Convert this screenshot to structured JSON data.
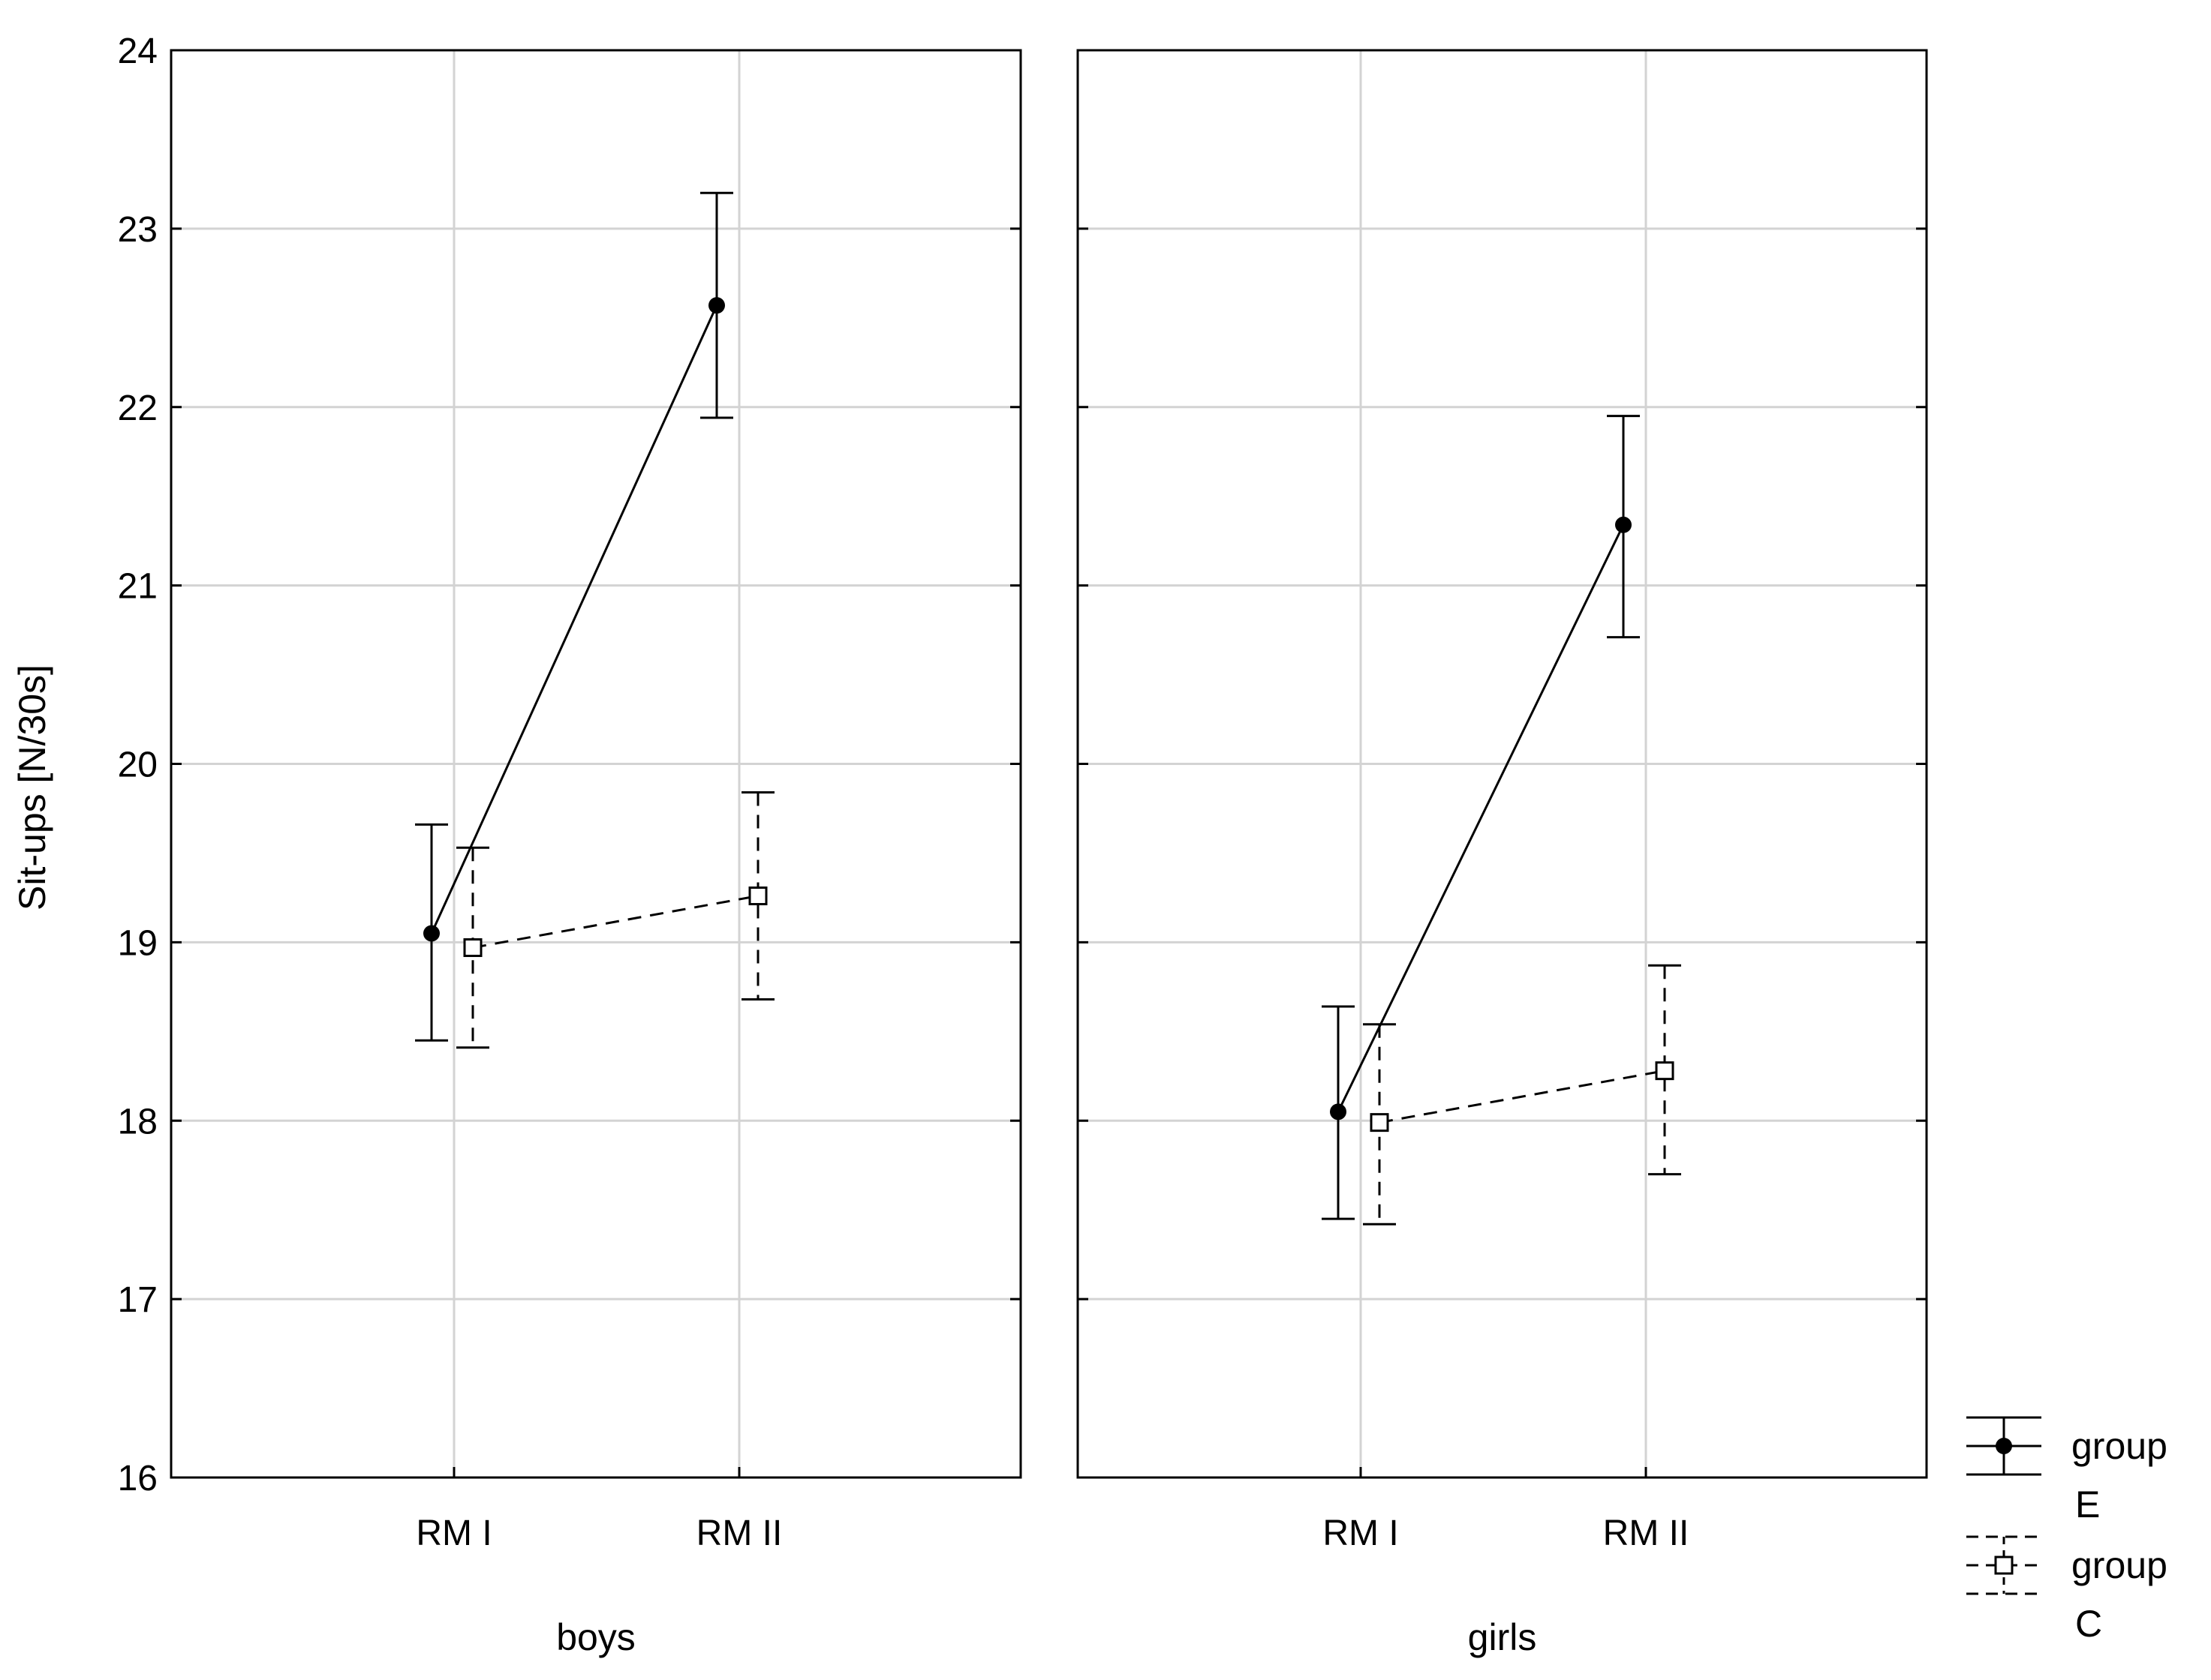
{
  "chart_data": {
    "type": "line",
    "ylabel": "Sit-ups [N/30s]",
    "ylim": [
      16,
      24
    ],
    "yticks": [
      "16",
      "17",
      "18",
      "19",
      "20",
      "21",
      "22",
      "23",
      "24"
    ],
    "categories": [
      "RM I",
      "RM II"
    ],
    "grid": true,
    "legend_position": "bottom-right",
    "panels": [
      {
        "label": "boys",
        "series": [
          {
            "name": "group E",
            "values": [
              19.05,
              22.57
            ],
            "err_low": [
              18.45,
              21.94
            ],
            "err_high": [
              19.66,
              23.2
            ]
          },
          {
            "name": "group C",
            "values": [
              18.97,
              19.26
            ],
            "err_low": [
              18.41,
              18.68
            ],
            "err_high": [
              19.53,
              19.84
            ]
          }
        ]
      },
      {
        "label": "girls",
        "series": [
          {
            "name": "group E",
            "values": [
              18.05,
              21.34
            ],
            "err_low": [
              17.45,
              20.71
            ],
            "err_high": [
              18.64,
              21.95
            ]
          },
          {
            "name": "group C",
            "values": [
              17.99,
              18.28
            ],
            "err_low": [
              17.42,
              17.7
            ],
            "err_high": [
              18.54,
              18.87
            ]
          }
        ]
      }
    ],
    "legend": [
      {
        "line1": "group",
        "line2": "E"
      },
      {
        "line1": "group",
        "line2": "C"
      }
    ]
  }
}
